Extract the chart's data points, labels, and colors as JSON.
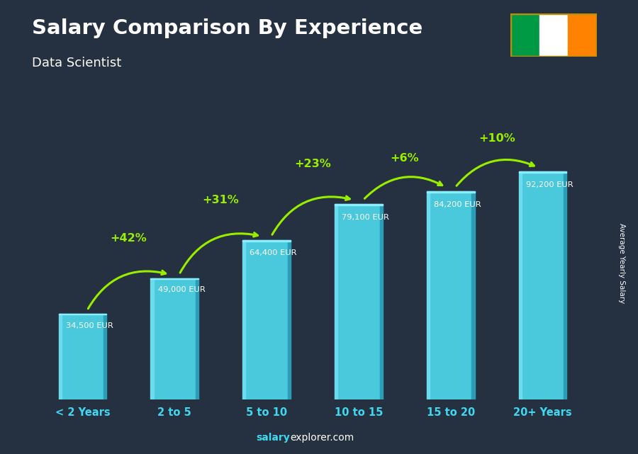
{
  "title": "Salary Comparison By Experience",
  "subtitle": "Data Scientist",
  "ylabel": "Average Yearly Salary",
  "categories": [
    "< 2 Years",
    "2 to 5",
    "5 to 10",
    "10 to 15",
    "15 to 20",
    "20+ Years"
  ],
  "values": [
    34500,
    49000,
    64400,
    79100,
    84200,
    92200
  ],
  "value_labels": [
    "34,500 EUR",
    "49,000 EUR",
    "64,400 EUR",
    "79,100 EUR",
    "84,200 EUR",
    "92,200 EUR"
  ],
  "pct_labels": [
    "+42%",
    "+31%",
    "+23%",
    "+6%",
    "+10%"
  ],
  "bar_color": "#4ac8dc",
  "bar_left_color": "#6adcee",
  "bar_right_color": "#2a9db8",
  "bar_top_color": "#8aeeff",
  "bg_color": "#253040",
  "title_color": "#ffffff",
  "subtitle_color": "#ffffff",
  "tick_color": "#40d8f0",
  "pct_color": "#99ee00",
  "arrow_color": "#99ee00",
  "ylim": [
    0,
    110000
  ],
  "flag_colors": [
    "#009A44",
    "#FFFFFF",
    "#FF8200"
  ],
  "flag_border_color": "#b8900a",
  "watermark_color1": "#40d8f0",
  "watermark_color2": "#ffffff"
}
